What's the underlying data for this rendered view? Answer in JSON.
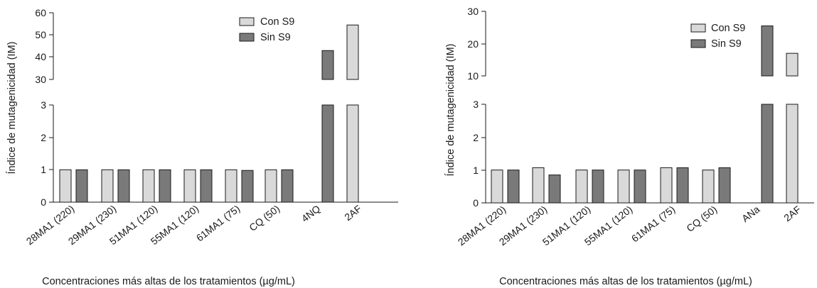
{
  "colors": {
    "con": "#d9d9d9",
    "sin": "#7a7a7a",
    "stroke": "#1a1a1a"
  },
  "chart_data": [
    {
      "type": "bar",
      "broken_axis": true,
      "ylabel": "Índice de mutagenicidad (IM)",
      "xlabel": "Concentraciones más altas de los tratamientos (µg/mL)",
      "categories": [
        "28MA1 (220)",
        "29MA1 (230)",
        "51MA1 (120)",
        "55MA1 (120)",
        "61MA1 (75)",
        "CQ (50)",
        "4NQ",
        "2AF"
      ],
      "lower_ticks": [
        "0",
        "1",
        "2",
        "3"
      ],
      "upper_ticks": [
        "30",
        "40",
        "50",
        "60"
      ],
      "lower_ylim": [
        0,
        3
      ],
      "upper_ylim": [
        30,
        60
      ],
      "legend_position": "top-center",
      "series": [
        {
          "name": "Con S9",
          "color_key": "con",
          "values": [
            1.0,
            1.0,
            1.0,
            1.0,
            1.0,
            1.0,
            null,
            54.5
          ]
        },
        {
          "name": "Sin S9",
          "color_key": "sin",
          "values": [
            1.0,
            1.0,
            1.0,
            1.0,
            0.98,
            1.0,
            43.0,
            null
          ]
        }
      ]
    },
    {
      "type": "bar",
      "broken_axis": true,
      "ylabel": "Índice de mutagenicidad (IM)",
      "xlabel": "Concentraciones más altas de los tratamientos (µg/mL)",
      "categories": [
        "28MA1 (220)",
        "29MA1 (230)",
        "51MA1 (120)",
        "55MA1 (120)",
        "61MA1 (75)",
        "CQ (50)",
        "ANa",
        "2AF"
      ],
      "lower_ticks": [
        "0",
        "1",
        "2",
        "3"
      ],
      "upper_ticks": [
        "10",
        "20",
        "30"
      ],
      "lower_ylim": [
        0,
        3
      ],
      "upper_ylim": [
        10,
        30
      ],
      "legend_position": "top-right",
      "series": [
        {
          "name": "Con S9",
          "color_key": "con",
          "values": [
            1.0,
            1.07,
            1.0,
            1.0,
            1.07,
            1.0,
            null,
            17.0
          ]
        },
        {
          "name": "Sin S9",
          "color_key": "sin",
          "values": [
            1.0,
            0.85,
            1.0,
            1.0,
            1.07,
            1.07,
            25.5,
            null
          ]
        }
      ]
    }
  ]
}
